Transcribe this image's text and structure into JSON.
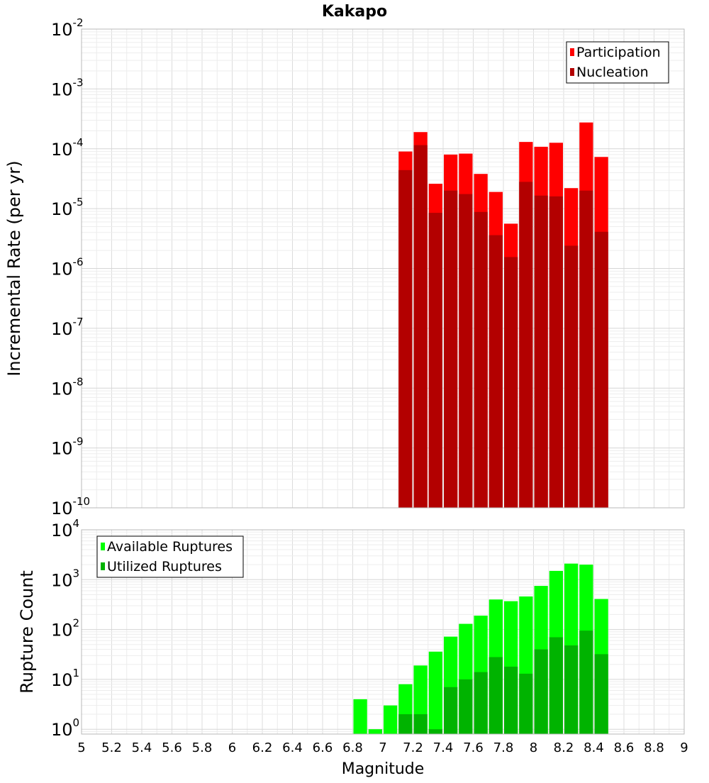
{
  "chart_data": [
    {
      "type": "bar",
      "title": "Kakapo",
      "ylabel": "Incremental Rate (per yr)",
      "xlabel": "",
      "yscale": "log",
      "ylim": [
        1e-10,
        0.01
      ],
      "xlim": [
        5,
        9
      ],
      "bin_width": 0.1,
      "y_ticks": [
        {
          "base": "10",
          "exp": "-10"
        },
        {
          "base": "10",
          "exp": "-9"
        },
        {
          "base": "10",
          "exp": "-8"
        },
        {
          "base": "10",
          "exp": "-7"
        },
        {
          "base": "10",
          "exp": "-6"
        },
        {
          "base": "10",
          "exp": "-5"
        },
        {
          "base": "10",
          "exp": "-4"
        },
        {
          "base": "10",
          "exp": "-3"
        },
        {
          "base": "10",
          "exp": "-2"
        }
      ],
      "legend_position": "top-right",
      "bins": [
        7.15,
        7.25,
        7.35,
        7.45,
        7.55,
        7.65,
        7.75,
        7.85,
        7.95,
        8.05,
        8.15,
        8.25,
        8.35,
        8.45
      ],
      "series": [
        {
          "name": "Participation",
          "color": "#ff0000",
          "values": [
            9e-05,
            0.00019,
            2.6e-05,
            8e-05,
            8.3e-05,
            3.8e-05,
            1.9e-05,
            5.6e-06,
            0.00013,
            0.000108,
            0.000126,
            2.2e-05,
            0.000275,
            7.3e-05
          ]
        },
        {
          "name": "Nucleation",
          "color": "#b30000",
          "values": [
            4.4e-05,
            0.000115,
            8.5e-06,
            2e-05,
            1.75e-05,
            8.8e-06,
            3.6e-06,
            1.55e-06,
            2.8e-05,
            1.65e-05,
            1.6e-05,
            2.4e-06,
            2e-05,
            4.1e-06
          ]
        }
      ]
    },
    {
      "type": "bar",
      "title": "",
      "ylabel": "Rupture Count",
      "xlabel": "Magnitude",
      "yscale": "log",
      "ylim": [
        0.8,
        10000.0
      ],
      "xlim": [
        5,
        9
      ],
      "bin_width": 0.1,
      "x_ticks": [
        "5",
        "5.2",
        "5.4",
        "5.6",
        "5.8",
        "6",
        "6.2",
        "6.4",
        "6.6",
        "6.8",
        "7",
        "7.2",
        "7.4",
        "7.6",
        "7.8",
        "8",
        "8.2",
        "8.4",
        "8.6",
        "8.8",
        "9"
      ],
      "y_ticks": [
        {
          "base": "10",
          "exp": "0"
        },
        {
          "base": "10",
          "exp": "1"
        },
        {
          "base": "10",
          "exp": "2"
        },
        {
          "base": "10",
          "exp": "3"
        },
        {
          "base": "10",
          "exp": "4"
        }
      ],
      "legend_position": "top-left",
      "bins": [
        6.85,
        6.95,
        7.05,
        7.15,
        7.25,
        7.35,
        7.45,
        7.55,
        7.65,
        7.75,
        7.85,
        7.95,
        8.05,
        8.15,
        8.25,
        8.35,
        8.45
      ],
      "series": [
        {
          "name": "Available Ruptures",
          "color": "#00ff00",
          "values": [
            4,
            1,
            3,
            8,
            19,
            36,
            72,
            130,
            190,
            400,
            370,
            460,
            750,
            1500,
            2100,
            2000,
            410
          ]
        },
        {
          "name": "Utilized Ruptures",
          "color": "#00b300",
          "values": [
            0,
            0,
            0,
            2,
            2,
            1,
            7,
            10,
            14,
            28,
            18,
            13,
            40,
            70,
            48,
            95,
            32
          ]
        }
      ]
    }
  ]
}
